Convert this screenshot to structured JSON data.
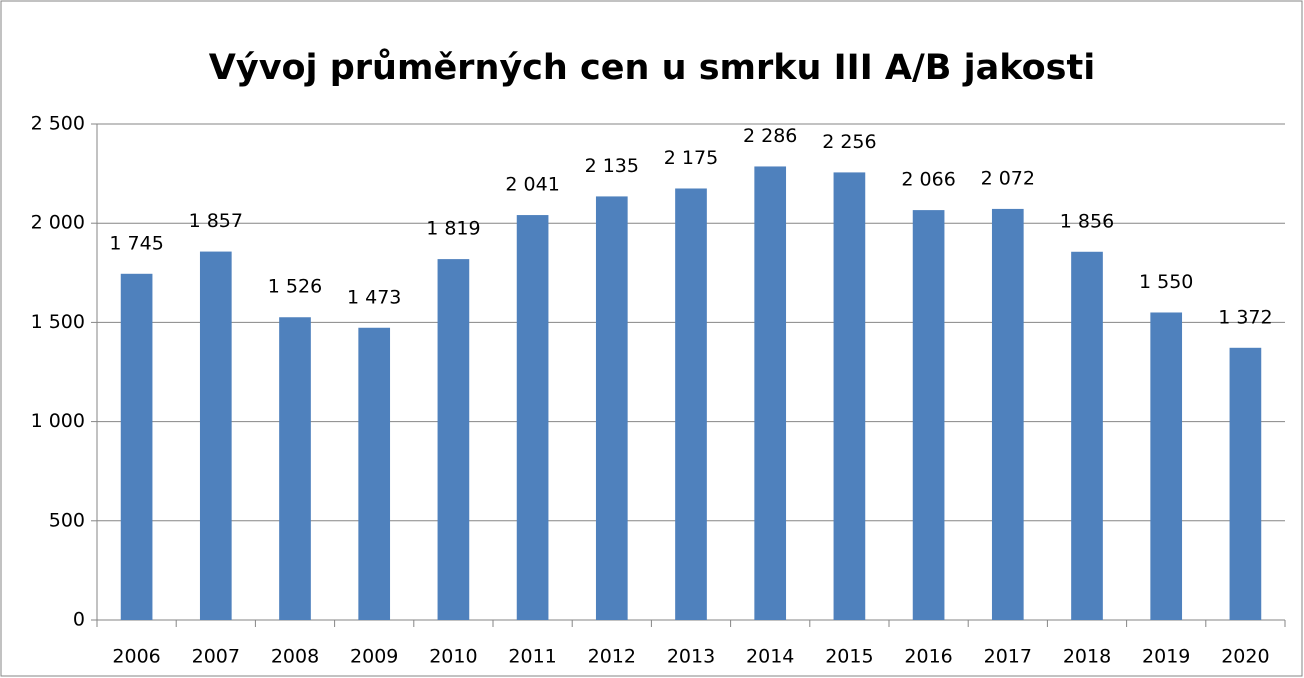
{
  "chart_data": {
    "type": "bar",
    "title": "Vývoj průměrných cen u smrku III A/B jakosti",
    "categories": [
      "2006",
      "2007",
      "2008",
      "2009",
      "2010",
      "2011",
      "2012",
      "2013",
      "2014",
      "2015",
      "2016",
      "2017",
      "2018",
      "2019",
      "2020"
    ],
    "values": [
      1745,
      1857,
      1526,
      1473,
      1819,
      2041,
      2135,
      2175,
      2286,
      2256,
      2066,
      2072,
      1856,
      1550,
      1372
    ],
    "value_labels": [
      "1 745",
      "1 857",
      "1 526",
      "1 473",
      "1 819",
      "2 041",
      "2 135",
      "2 175",
      "2 286",
      "2 256",
      "2 066",
      "2 072",
      "1 856",
      "1 550",
      "1 372"
    ],
    "color": "#4f81bd",
    "ylim": [
      0,
      2500
    ],
    "yticks": [
      0,
      500,
      {
        "value": 1000,
        "label": "1 000"
      },
      {
        "value": 1500,
        "label": "1 500"
      },
      {
        "value": 2000,
        "label": "2 000"
      },
      {
        "value": 2500,
        "label": "2 500"
      }
    ],
    "grid": true
  }
}
